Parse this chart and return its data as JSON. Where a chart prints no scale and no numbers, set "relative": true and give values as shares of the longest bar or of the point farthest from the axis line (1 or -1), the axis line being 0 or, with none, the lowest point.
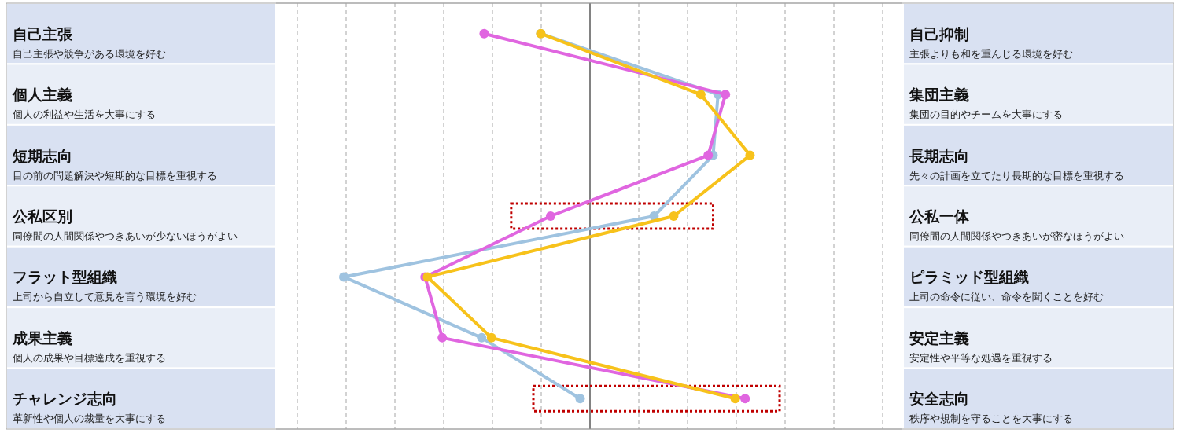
{
  "chart_data": {
    "type": "line",
    "orientation": "horizontal",
    "relative": true,
    "grid": true,
    "marker": "circle",
    "categories": [
      "自己主張",
      "個人主義",
      "短期志向",
      "公私区別",
      "フラット型組織",
      "成果主義",
      "チャレンジ志向"
    ],
    "y2_categories": [
      "自己抑制",
      "集団主義",
      "長期志向",
      "公私一体",
      "ピラミッド型組織",
      "安定主義",
      "安全志向"
    ],
    "annotations": [
      "自己主張や競争がある環境を好む",
      "個人の利益や生活を大事にする",
      "目の前の問題解決や短期的な目標を重視する",
      "同僚間の人間関係やつきあいが少ないほうがよい",
      "上司から自立して意見を言う環境を好む",
      "個人の成果や目標達成を重視する",
      "革新性や個人の裁量を大事にする",
      "主張よりも和を重んじる環境を好む",
      "集団の目的やチームを大事にする",
      "先々の計画を立てたり長期的な目標を重視する",
      "同僚間の人間関係やつきあいが密なほうがよい",
      "上司の命令に従い、命令を聞くことを好む",
      "安定性や平等な処遇を重視する",
      "秩序や規制を守ることを大事にする"
    ],
    "series": [
      {
        "color": "#9fc3e0",
        "values": [
          -0.2,
          0.52,
          0.5,
          0.26,
          -1,
          -0.44,
          -0.04
        ]
      },
      {
        "color": "#e066e0",
        "values": [
          -0.43,
          0.55,
          0.48,
          -0.16,
          -0.67,
          -0.6,
          0.63
        ]
      },
      {
        "color": "#f7c21b",
        "values": [
          -0.2,
          0.45,
          0.65,
          0.34,
          -0.66,
          -0.4,
          0.59
        ]
      }
    ]
  }
}
